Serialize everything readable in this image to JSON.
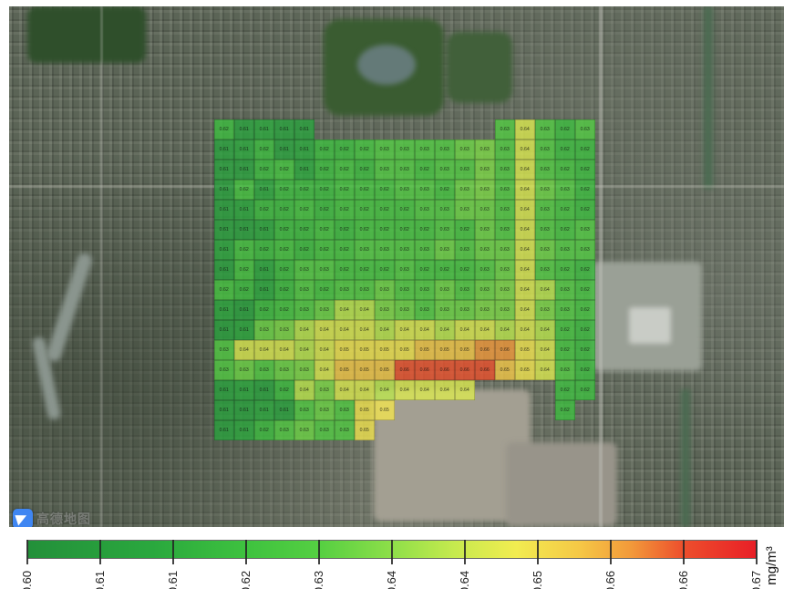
{
  "chart_data": {
    "type": "heatmap",
    "title": "",
    "unit": "mg/m³",
    "colorbar": {
      "range": [
        0.6,
        0.67
      ],
      "tick_labels": [
        "0.60",
        "0.61",
        "0.61",
        "0.62",
        "0.63",
        "0.64",
        "0.64",
        "0.65",
        "0.66",
        "0.66",
        "0.67"
      ],
      "gradient_stops": [
        {
          "v": 0.6,
          "c": "#23903a"
        },
        {
          "v": 0.612,
          "c": "#2aa83e"
        },
        {
          "v": 0.621,
          "c": "#3ec23f"
        },
        {
          "v": 0.628,
          "c": "#55cf42"
        },
        {
          "v": 0.635,
          "c": "#8edf49"
        },
        {
          "v": 0.641,
          "c": "#c6ea4e"
        },
        {
          "v": 0.647,
          "c": "#f2ec50"
        },
        {
          "v": 0.653,
          "c": "#f5c846"
        },
        {
          "v": 0.658,
          "c": "#f2993a"
        },
        {
          "v": 0.663,
          "c": "#ed4f2c"
        },
        {
          "v": 0.67,
          "c": "#e81f27"
        }
      ]
    },
    "grid": {
      "rows": 16,
      "cols": 19,
      "cell_values": [
        [
          0.62,
          0.61,
          0.613,
          0.61,
          0.61,
          null,
          null,
          null,
          null,
          null,
          null,
          null,
          null,
          null,
          0.627,
          0.644,
          0.627,
          0.62,
          0.627
        ],
        [
          0.61,
          0.613,
          0.62,
          0.61,
          0.613,
          0.62,
          0.62,
          0.623,
          0.627,
          0.627,
          0.627,
          0.627,
          0.631,
          0.633,
          0.627,
          0.644,
          0.627,
          0.62,
          0.62
        ],
        [
          0.61,
          0.61,
          0.62,
          0.623,
          0.613,
          0.62,
          0.623,
          0.62,
          0.627,
          0.627,
          0.623,
          0.627,
          0.627,
          0.633,
          0.627,
          0.644,
          0.627,
          0.623,
          0.62
        ],
        [
          0.61,
          0.623,
          0.613,
          0.62,
          0.62,
          0.62,
          0.623,
          0.623,
          0.623,
          0.627,
          0.627,
          0.623,
          0.631,
          0.633,
          0.627,
          0.644,
          0.631,
          0.627,
          0.62
        ],
        [
          0.61,
          0.613,
          0.62,
          0.62,
          0.623,
          0.62,
          0.623,
          0.623,
          0.623,
          0.623,
          0.627,
          0.627,
          0.631,
          0.631,
          0.627,
          0.644,
          0.627,
          0.623,
          0.62
        ],
        [
          0.61,
          0.61,
          0.613,
          0.62,
          0.62,
          0.623,
          0.62,
          0.623,
          0.623,
          0.623,
          0.623,
          0.627,
          0.623,
          0.631,
          0.627,
          0.644,
          0.627,
          0.623,
          0.627
        ],
        [
          0.613,
          0.623,
          0.62,
          0.623,
          0.62,
          0.623,
          0.623,
          0.627,
          0.627,
          0.627,
          0.627,
          0.631,
          0.627,
          0.631,
          0.631,
          0.644,
          0.631,
          0.627,
          0.627
        ],
        [
          0.61,
          0.623,
          0.613,
          0.62,
          0.627,
          0.627,
          0.623,
          0.623,
          0.623,
          0.627,
          0.623,
          0.623,
          0.623,
          0.627,
          0.631,
          0.644,
          0.627,
          0.623,
          0.62
        ],
        [
          0.623,
          0.62,
          0.613,
          0.62,
          0.627,
          0.623,
          0.627,
          0.627,
          0.631,
          0.627,
          0.627,
          0.631,
          0.627,
          0.631,
          0.633,
          0.644,
          0.64,
          0.627,
          0.623
        ],
        [
          0.613,
          0.61,
          0.62,
          0.623,
          0.627,
          0.631,
          0.64,
          0.64,
          0.633,
          0.631,
          0.627,
          0.631,
          0.631,
          0.633,
          0.633,
          0.644,
          0.633,
          0.627,
          0.623
        ],
        [
          0.61,
          0.613,
          0.631,
          0.633,
          0.64,
          0.644,
          0.644,
          0.644,
          0.64,
          0.644,
          0.644,
          0.64,
          0.644,
          0.644,
          0.64,
          0.644,
          0.64,
          0.623,
          0.62
        ],
        [
          0.627,
          0.644,
          0.644,
          0.644,
          0.64,
          0.644,
          0.648,
          0.648,
          0.648,
          0.648,
          0.653,
          0.653,
          0.653,
          0.658,
          0.658,
          0.648,
          0.644,
          0.623,
          0.62
        ],
        [
          0.627,
          0.631,
          0.627,
          0.631,
          0.633,
          0.644,
          0.653,
          0.653,
          0.653,
          0.663,
          0.663,
          0.663,
          0.663,
          0.663,
          0.653,
          0.648,
          0.644,
          0.627,
          0.62
        ],
        [
          0.61,
          0.613,
          0.61,
          0.62,
          0.64,
          0.633,
          0.644,
          0.644,
          0.64,
          0.644,
          0.644,
          0.644,
          0.644,
          null,
          null,
          null,
          null,
          0.62,
          0.62
        ],
        [
          0.61,
          0.61,
          0.613,
          0.61,
          0.627,
          0.631,
          0.627,
          0.648,
          0.648,
          null,
          null,
          null,
          null,
          null,
          null,
          null,
          null,
          0.62,
          null
        ],
        [
          0.61,
          0.613,
          0.62,
          0.627,
          0.631,
          0.627,
          0.627,
          0.648,
          null,
          null,
          null,
          null,
          null,
          null,
          null,
          null,
          null,
          null,
          null
        ]
      ]
    }
  },
  "watermark": {
    "logo_icon": "amap-paper-plane-logo",
    "label": "高德地图"
  }
}
